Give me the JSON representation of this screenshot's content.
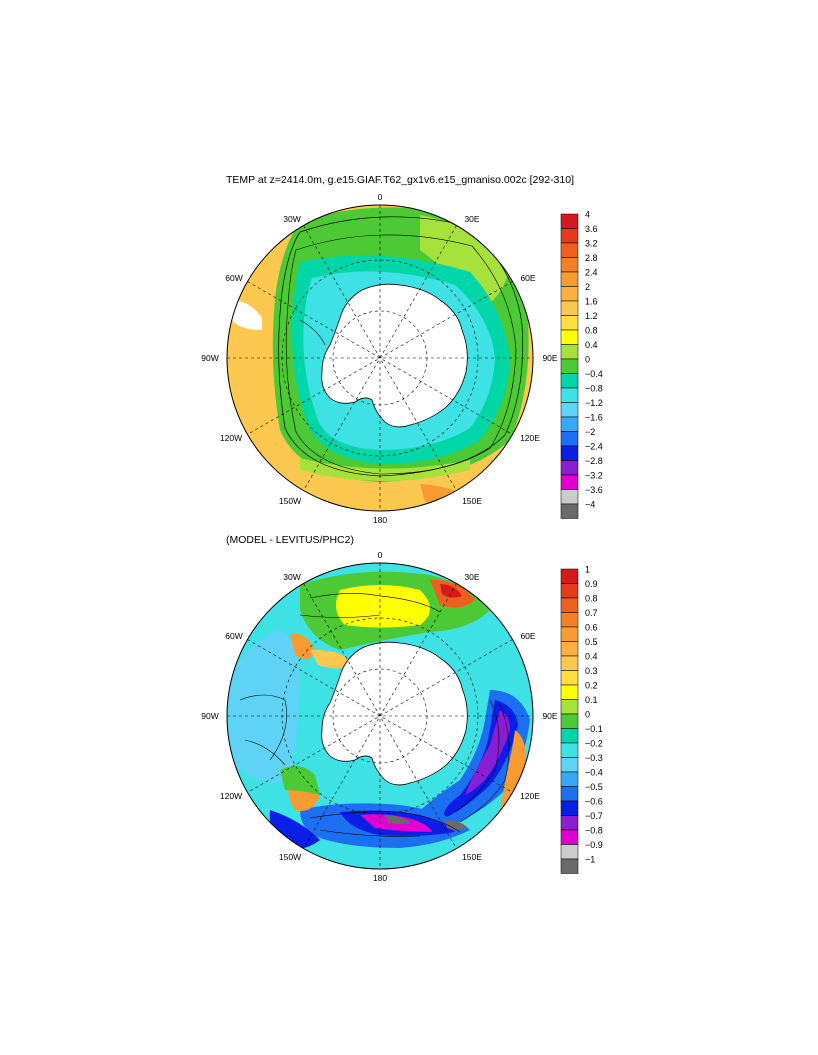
{
  "figure": {
    "title": "TEMP at z=2414.0m, g.e15.GIAF.T62_gx1v6.e15_gmaniso.002c [292-310]",
    "subtitle": "(MODEL - LEVITUS/PHC2)"
  },
  "map_labels": {
    "lat_top": "0",
    "lon_30w": "30W",
    "lon_30e": "30E",
    "lon_60w": "60W",
    "lon_60e": "60E",
    "lon_90w": "90W",
    "lon_90e": "90E",
    "lon_120w": "120W",
    "lon_120e": "120E",
    "lon_150w": "150W",
    "lon_150e": "150E",
    "lon_180": "180"
  },
  "colorbar_top": {
    "levels": [
      "4",
      "3.6",
      "3.2",
      "2.8",
      "2.4",
      "2",
      "1.6",
      "1.2",
      "0.8",
      "0.4",
      "0",
      "−0.4",
      "−0.8",
      "−1.2",
      "−1.6",
      "−2",
      "−2.4",
      "−2.8",
      "−3.2",
      "−3.6",
      "−4"
    ],
    "colors": [
      "#d7191c",
      "#e53b1c",
      "#ef6020",
      "#f57f26",
      "#f99b30",
      "#fbb040",
      "#fdc850",
      "#ffe040",
      "#ffff00",
      "#a6e13c",
      "#4cc934",
      "#00d6a8",
      "#3fe2e4",
      "#5fd3f5",
      "#36a8f5",
      "#1c6ff0",
      "#0a1ee6",
      "#8a1ed2",
      "#e000d0",
      "#cccccc",
      "#6a6a6a"
    ]
  },
  "colorbar_bottom": {
    "levels": [
      "1",
      "0.9",
      "0.8",
      "0.7",
      "0.6",
      "0.5",
      "0.4",
      "0.3",
      "0.2",
      "0.1",
      "0",
      "−0.1",
      "−0.2",
      "−0.3",
      "−0.4",
      "−0.5",
      "−0.6",
      "−0.7",
      "−0.8",
      "−0.9",
      "−1"
    ],
    "colors": [
      "#d7191c",
      "#e53b1c",
      "#ef6020",
      "#f57f26",
      "#f99b30",
      "#fbb040",
      "#fdc850",
      "#ffe040",
      "#ffff00",
      "#a6e13c",
      "#4cc934",
      "#00d6a8",
      "#3fe2e4",
      "#5fd3f5",
      "#36a8f5",
      "#1c6ff0",
      "#0a1ee6",
      "#8a1ed2",
      "#e000d0",
      "#cccccc",
      "#6a6a6a"
    ]
  }
}
